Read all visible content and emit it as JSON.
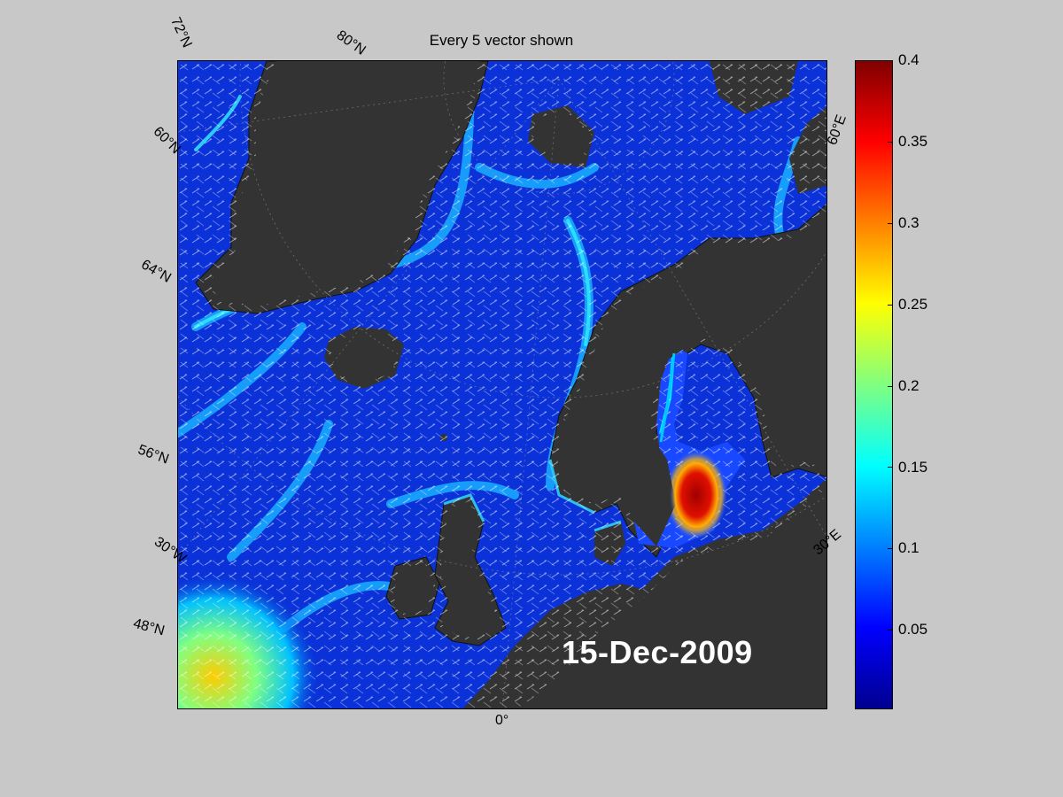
{
  "figure": {
    "title": "Every 5 vector shown",
    "date": "15-Dec-2009"
  },
  "grid_labels": [
    "72°N",
    "80°N",
    "60°N",
    "64°N",
    "56°N",
    "30°W",
    "48°N",
    "0°",
    "60°E",
    "30°E"
  ],
  "colorbar": {
    "min": 0,
    "max": 0.4,
    "ticks": [
      "0.4",
      "0.35",
      "0.3",
      "0.25",
      "0.2",
      "0.15",
      "0.1",
      "0.05"
    ],
    "colormap": "jet",
    "colors": [
      "#00008f",
      "#0000ff",
      "#00ffff",
      "#ffff00",
      "#ff0000",
      "#800000"
    ]
  },
  "map": {
    "land_color": "#333333",
    "ocean_base_color": "#0a32d8",
    "vector_color": "#ffffff"
  }
}
